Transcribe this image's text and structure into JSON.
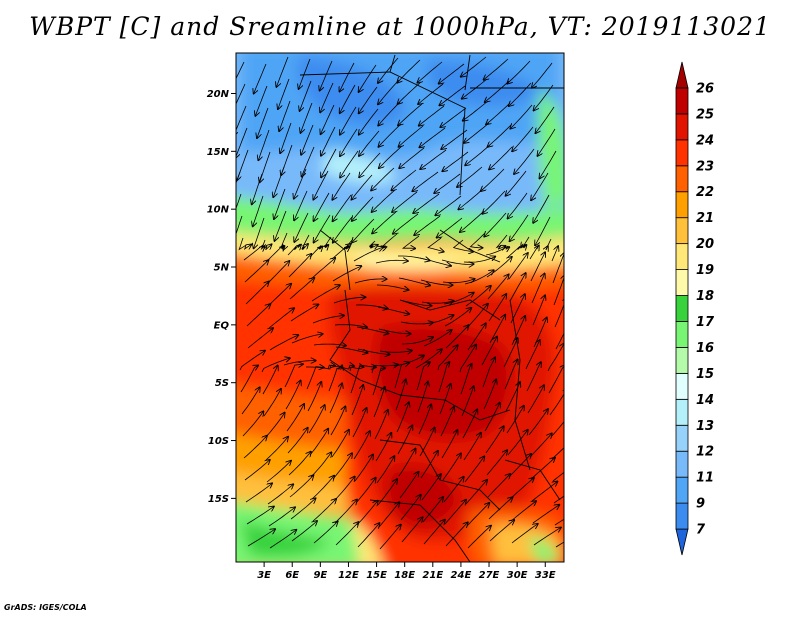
{
  "title": "WBPT [C] and Sreamline at 1000hPa, VT: 2019113021",
  "credit": "GrADS: IGES/COLA",
  "map": {
    "variable": "Wet-bulb potential temperature",
    "units": "C",
    "level": "1000hPa",
    "lon_range": [
      0,
      35
    ],
    "lat_range": [
      -20.5,
      23.5
    ],
    "lat_ticks": [
      {
        "value": 20,
        "label": "20N"
      },
      {
        "value": 15,
        "label": "15N"
      },
      {
        "value": 10,
        "label": "10N"
      },
      {
        "value": 5,
        "label": "5N"
      },
      {
        "value": 0,
        "label": "EQ"
      },
      {
        "value": -5,
        "label": "5S"
      },
      {
        "value": -10,
        "label": "10S"
      },
      {
        "value": -15,
        "label": "15S"
      }
    ],
    "lon_ticks": [
      {
        "value": 3,
        "label": "3E"
      },
      {
        "value": 6,
        "label": "6E"
      },
      {
        "value": 9,
        "label": "9E"
      },
      {
        "value": 12,
        "label": "12E"
      },
      {
        "value": 15,
        "label": "15E"
      },
      {
        "value": 18,
        "label": "18E"
      },
      {
        "value": 21,
        "label": "21E"
      },
      {
        "value": 24,
        "label": "24E"
      },
      {
        "value": 27,
        "label": "27E"
      },
      {
        "value": 30,
        "label": "30E"
      },
      {
        "value": 33,
        "label": "33E"
      }
    ]
  },
  "colorbar": {
    "levels": [
      {
        "label": "7",
        "color": "#1e64dc"
      },
      {
        "label": "9",
        "color": "#3c8cf0"
      },
      {
        "label": "11",
        "color": "#50a5f5"
      },
      {
        "label": "12",
        "color": "#78b9fa"
      },
      {
        "label": "13",
        "color": "#96d2fa"
      },
      {
        "label": "14",
        "color": "#b4f0fa"
      },
      {
        "label": "15",
        "color": "#e1ffff"
      },
      {
        "label": "16",
        "color": "#b4faaa"
      },
      {
        "label": "17",
        "color": "#78f573"
      },
      {
        "label": "18",
        "color": "#37d23c"
      },
      {
        "label": "19",
        "color": "#fffaaa"
      },
      {
        "label": "20",
        "color": "#ffe878"
      },
      {
        "label": "21",
        "color": "#ffc03c"
      },
      {
        "label": "22",
        "color": "#ffa000"
      },
      {
        "label": "23",
        "color": "#ff6000"
      },
      {
        "label": "24",
        "color": "#ff3200"
      },
      {
        "label": "25",
        "color": "#e11400"
      },
      {
        "label": "26",
        "color": "#c00000"
      },
      {
        "label": "",
        "color": "#a50000"
      }
    ]
  }
}
